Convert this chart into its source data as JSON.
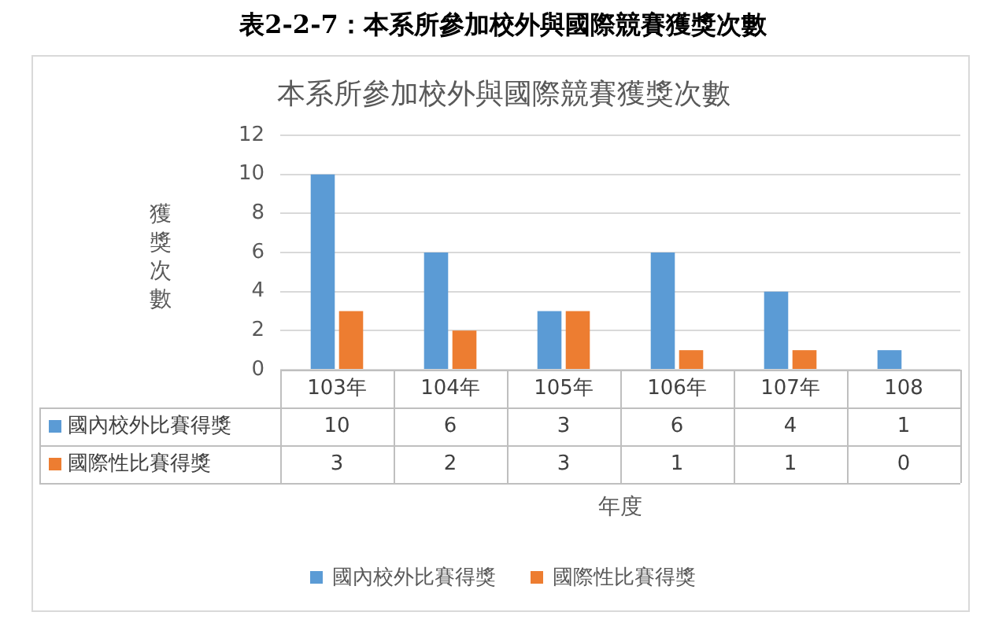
{
  "chart_data": {
    "type": "bar",
    "title": "本系所參加校外與國際競賽獲獎次數",
    "annotations": [
      "表2-2-7：本系所參加校外與國際競賽獲獎次數"
    ],
    "xlabel": "年度",
    "ylabel": "獲獎次數",
    "categories": [
      "103年",
      "104年",
      "105年",
      "106年",
      "107年",
      "108"
    ],
    "series": [
      {
        "name": "國內校外比賽得獎",
        "color": "#5b9bd5",
        "values": [
          10,
          6,
          3,
          6,
          4,
          1
        ]
      },
      {
        "name": "國際性比賽得獎",
        "color": "#ed7d31",
        "values": [
          3,
          2,
          3,
          1,
          1,
          0
        ]
      }
    ],
    "ylim": [
      0,
      12
    ],
    "yticks": [
      0,
      2,
      4,
      6,
      8,
      10,
      12
    ],
    "grid": "y",
    "legend": "bottom",
    "data_labels": true
  }
}
